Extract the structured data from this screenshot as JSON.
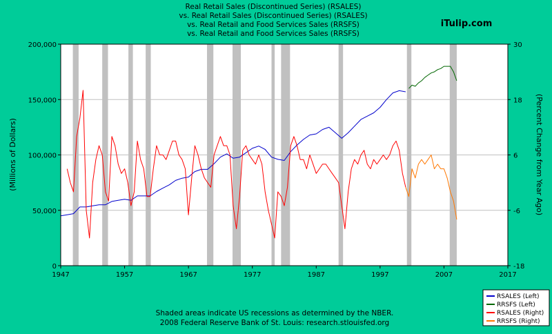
{
  "header": {
    "title_lines": [
      "Real Retail Sales (Discontinued Series) (RSALES)",
      "vs.  Real Retail Sales (Discontinued Series) (RSALES)",
      "vs.  Real Retail and Food Services Sales (RRSFS)",
      "vs.  Real Retail and Food Services Sales (RRSFS)"
    ],
    "brand": "iTulip.com"
  },
  "footer": {
    "lines": [
      "Shaded areas indicate US recessions as determined by the NBER.",
      "2008 Federal Reserve Bank of St. Louis: research.stlouisfed.org"
    ]
  },
  "chart_data": {
    "type": "line",
    "ylabel_left": "(Millions of Dollars)",
    "ylabel_right": "(Percent Change from Year Ago)",
    "xlim": [
      1947,
      2017
    ],
    "ylim_left": [
      0,
      200000
    ],
    "ylim_right": [
      -18,
      30
    ],
    "x_ticks": [
      1947,
      1957,
      1967,
      1977,
      1987,
      1997,
      2007,
      2017
    ],
    "y_left_ticks": [
      0,
      50000,
      100000,
      150000,
      200000
    ],
    "y_left_tick_labels": [
      "0",
      "50,000",
      "100,000",
      "150,000",
      "200,000"
    ],
    "y_right_ticks": [
      -18,
      -6,
      6,
      18,
      30
    ],
    "grid": true,
    "legend_position": "bottom-right",
    "colors": {
      "background": "#00CC99",
      "plot_bg": "#FFFFFF",
      "recession": "#C0C0C0",
      "grid": "#C0C0C0",
      "rsales_level": "#0000CC",
      "rrsfs_level": "#006600",
      "rsales_pct": "#FF0000",
      "rrsfs_pct": "#FF7700"
    },
    "recessions": [
      [
        1948.9,
        1949.8
      ],
      [
        1953.5,
        1954.4
      ],
      [
        1957.6,
        1958.3
      ],
      [
        1960.3,
        1961.1
      ],
      [
        1969.9,
        1970.9
      ],
      [
        1973.9,
        1975.2
      ],
      [
        1980.0,
        1980.5
      ],
      [
        1981.5,
        1982.9
      ],
      [
        1990.5,
        1991.2
      ],
      [
        2001.2,
        2001.9
      ],
      [
        2007.9,
        2009.0
      ]
    ],
    "series": [
      {
        "name": "RSALES (Left)",
        "axis": "left",
        "color": "#0000CC",
        "x": [
          1947,
          1948,
          1949,
          1950,
          1951,
          1952,
          1953,
          1954,
          1955,
          1956,
          1957,
          1958,
          1959,
          1960,
          1961,
          1962,
          1963,
          1964,
          1965,
          1966,
          1967,
          1968,
          1969,
          1970,
          1971,
          1972,
          1973,
          1974,
          1975,
          1976,
          1977,
          1978,
          1979,
          1980,
          1981,
          1982,
          1983,
          1984,
          1985,
          1986,
          1987,
          1988,
          1989,
          1990,
          1991,
          1992,
          1993,
          1994,
          1995,
          1996,
          1997,
          1998,
          1999,
          2000,
          2001
        ],
        "values": [
          45000,
          46000,
          47000,
          53000,
          53000,
          54000,
          55000,
          55000,
          58000,
          59000,
          60000,
          59000,
          63000,
          63000,
          63000,
          67000,
          70000,
          73000,
          77000,
          79000,
          80000,
          85000,
          87000,
          87000,
          92000,
          98000,
          101000,
          97000,
          98000,
          102000,
          106000,
          108000,
          105000,
          98000,
          96000,
          95000,
          103000,
          109000,
          114000,
          118000,
          119000,
          123000,
          125000,
          120000,
          115000,
          120000,
          126000,
          132000,
          135000,
          138000,
          143000,
          150000,
          156000,
          158000,
          157000
        ]
      },
      {
        "name": "RRSFS (Left)",
        "axis": "left",
        "color": "#006600",
        "x": [
          2001.5,
          2002,
          2002.5,
          2003,
          2003.5,
          2004,
          2004.5,
          2005,
          2005.5,
          2006,
          2006.5,
          2007,
          2007.5,
          2008,
          2008.5,
          2009
        ],
        "values": [
          160000,
          163000,
          162000,
          165000,
          167000,
          170000,
          172000,
          174000,
          175000,
          177000,
          178000,
          180000,
          180000,
          180000,
          175000,
          167000
        ]
      },
      {
        "name": "RSALES (Right)",
        "axis": "right",
        "color": "#FF0000",
        "x": [
          1948,
          1948.5,
          1949,
          1949.5,
          1950,
          1950.5,
          1951,
          1951.5,
          1952,
          1952.5,
          1953,
          1953.5,
          1954,
          1954.5,
          1955,
          1955.5,
          1956,
          1956.5,
          1957,
          1957.5,
          1958,
          1958.5,
          1959,
          1959.5,
          1960,
          1960.5,
          1961,
          1961.5,
          1962,
          1962.5,
          1963,
          1963.5,
          1964,
          1964.5,
          1965,
          1965.5,
          1966,
          1966.5,
          1967,
          1967.5,
          1968,
          1968.5,
          1969,
          1969.5,
          1970,
          1970.5,
          1971,
          1971.5,
          1972,
          1972.5,
          1973,
          1973.5,
          1974,
          1974.5,
          1975,
          1975.5,
          1976,
          1976.5,
          1977,
          1977.5,
          1978,
          1978.5,
          1979,
          1979.5,
          1980,
          1980.5,
          1981,
          1981.5,
          1982,
          1982.5,
          1983,
          1983.5,
          1984,
          1984.5,
          1985,
          1985.5,
          1986,
          1986.5,
          1987,
          1987.5,
          1988,
          1988.5,
          1989,
          1989.5,
          1990,
          1990.5,
          1991,
          1991.5,
          1992,
          1992.5,
          1993,
          1993.5,
          1994,
          1994.5,
          1995,
          1995.5,
          1996,
          1996.5,
          1997,
          1997.5,
          1998,
          1998.5,
          1999,
          1999.5,
          2000,
          2000.5,
          2001
        ],
        "values": [
          3,
          0,
          -2,
          10,
          14,
          20,
          -6,
          -12,
          0,
          5,
          8,
          6,
          -2,
          -4,
          10,
          8,
          4,
          2,
          3,
          0,
          -5,
          -2,
          9,
          5,
          3,
          -3,
          -3,
          3,
          8,
          6,
          6,
          5,
          7,
          9,
          9,
          6,
          5,
          3,
          -7,
          1,
          8,
          6,
          3,
          1,
          0,
          -1,
          6,
          8,
          10,
          8,
          8,
          6,
          -5,
          -10,
          -3,
          7,
          8,
          6,
          5,
          4,
          6,
          4,
          -2,
          -6,
          -9,
          -12,
          -2,
          -3,
          -5,
          -1,
          8,
          10,
          8,
          5,
          5,
          3,
          6,
          4,
          2,
          3,
          4,
          4,
          3,
          2,
          1,
          0,
          -5,
          -10,
          -2,
          3,
          5,
          4,
          6,
          7,
          4,
          3,
          5,
          4,
          5,
          6,
          5,
          6,
          8,
          9,
          7,
          2,
          -1
        ]
      },
      {
        "name": "RRSFS (Right)",
        "axis": "right",
        "color": "#FF7700",
        "x": [
          2001,
          2001.5,
          2002,
          2002.5,
          2003,
          2003.5,
          2004,
          2004.5,
          2005,
          2005.5,
          2006,
          2006.5,
          2007,
          2007.5,
          2008,
          2008.5,
          2009
        ],
        "values": [
          -1,
          -3,
          3,
          1,
          4,
          5,
          4,
          5,
          6,
          3,
          4,
          3,
          3,
          1,
          -2,
          -4,
          -8
        ]
      }
    ]
  }
}
